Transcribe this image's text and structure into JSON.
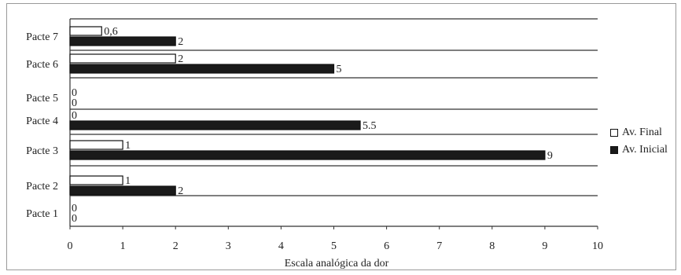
{
  "chart_data": {
    "type": "bar",
    "orientation": "horizontal",
    "categories": [
      "Pacte 1",
      "Pacte 2",
      "Pacte 3",
      "Pacte 4",
      "Pacte 5",
      "Pacte 6",
      "Pacte 7"
    ],
    "series": [
      {
        "name": "Av. Final",
        "values": [
          0,
          1,
          1,
          0,
          0,
          2,
          0.6
        ],
        "labels": [
          "0",
          "1",
          "1",
          "0",
          "0",
          "2",
          "0,6"
        ],
        "color": "#ffffff"
      },
      {
        "name": "Av. Inicial",
        "values": [
          0,
          2,
          9,
          5.5,
          0,
          5,
          2
        ],
        "labels": [
          "0",
          "2",
          "9",
          "5.5",
          "0",
          "5",
          "2"
        ],
        "color": "#1a1a1a"
      }
    ],
    "xlabel": "Escala analógica da dor",
    "xlim": [
      0,
      10
    ],
    "xticks": [
      0,
      1,
      2,
      3,
      4,
      5,
      6,
      7,
      8,
      9,
      10
    ],
    "grid": "horizontal",
    "legend": "right"
  }
}
